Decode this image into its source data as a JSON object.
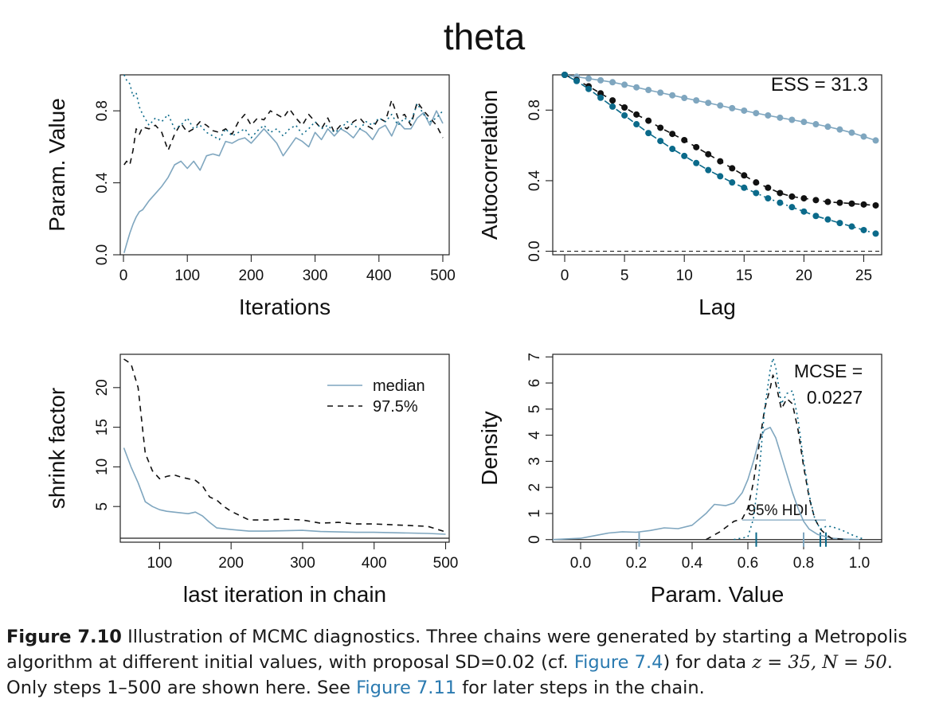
{
  "title": "theta",
  "colors": {
    "chain1": "#7fa6bf",
    "chain2": "#111111",
    "chain3": "#0b6a8a",
    "link": "#2a7ab0"
  },
  "chart_data": [
    {
      "id": "trace",
      "type": "line",
      "xlabel": "Iterations",
      "ylabel": "Param. Value",
      "xlim": [
        -5,
        510
      ],
      "ylim": [
        0,
        1
      ],
      "xticks": [
        "0",
        "100",
        "200",
        "300",
        "400",
        "500"
      ],
      "yticks": [
        "0.0",
        "0.4",
        "0.8"
      ],
      "series": [
        {
          "style": "solid",
          "color": "#7fa6bf",
          "x": [
            1,
            5,
            10,
            15,
            20,
            25,
            30,
            40,
            50,
            60,
            70,
            80,
            90,
            100,
            110,
            120,
            130,
            140,
            150,
            160,
            170,
            180,
            190,
            200,
            210,
            220,
            230,
            240,
            250,
            260,
            270,
            280,
            290,
            300,
            310,
            320,
            330,
            340,
            350,
            360,
            370,
            380,
            390,
            400,
            410,
            420,
            430,
            440,
            450,
            460,
            470,
            480,
            490,
            500
          ],
          "y": [
            0.01,
            0.06,
            0.12,
            0.17,
            0.21,
            0.24,
            0.25,
            0.3,
            0.34,
            0.38,
            0.43,
            0.5,
            0.52,
            0.48,
            0.52,
            0.47,
            0.55,
            0.56,
            0.55,
            0.63,
            0.62,
            0.64,
            0.65,
            0.62,
            0.66,
            0.7,
            0.66,
            0.62,
            0.55,
            0.6,
            0.65,
            0.63,
            0.6,
            0.68,
            0.64,
            0.7,
            0.66,
            0.7,
            0.68,
            0.65,
            0.7,
            0.68,
            0.64,
            0.7,
            0.72,
            0.66,
            0.74,
            0.7,
            0.7,
            0.76,
            0.79,
            0.72,
            0.8,
            0.73
          ]
        },
        {
          "style": "dashed",
          "color": "#111111",
          "x": [
            1,
            5,
            10,
            15,
            20,
            25,
            30,
            40,
            50,
            60,
            70,
            80,
            90,
            100,
            110,
            120,
            130,
            140,
            150,
            160,
            170,
            180,
            190,
            200,
            210,
            220,
            230,
            240,
            250,
            260,
            270,
            280,
            290,
            300,
            310,
            320,
            330,
            340,
            350,
            360,
            370,
            380,
            390,
            400,
            410,
            420,
            430,
            440,
            450,
            460,
            470,
            480,
            490,
            500
          ],
          "y": [
            0.5,
            0.52,
            0.5,
            0.58,
            0.7,
            0.67,
            0.71,
            0.7,
            0.72,
            0.68,
            0.58,
            0.67,
            0.73,
            0.68,
            0.7,
            0.74,
            0.72,
            0.69,
            0.68,
            0.7,
            0.67,
            0.74,
            0.78,
            0.72,
            0.76,
            0.75,
            0.8,
            0.78,
            0.76,
            0.81,
            0.76,
            0.72,
            0.78,
            0.74,
            0.7,
            0.76,
            0.68,
            0.72,
            0.7,
            0.74,
            0.76,
            0.72,
            0.7,
            0.76,
            0.74,
            0.86,
            0.76,
            0.78,
            0.72,
            0.85,
            0.8,
            0.76,
            0.72,
            0.65
          ]
        },
        {
          "style": "dotted",
          "color": "#0b6a8a",
          "x": [
            1,
            5,
            10,
            15,
            20,
            25,
            30,
            40,
            50,
            60,
            70,
            80,
            90,
            100,
            110,
            120,
            130,
            140,
            150,
            160,
            170,
            180,
            190,
            200,
            210,
            220,
            230,
            240,
            250,
            260,
            270,
            280,
            290,
            300,
            310,
            320,
            330,
            340,
            350,
            360,
            370,
            380,
            390,
            400,
            410,
            420,
            430,
            440,
            450,
            460,
            470,
            480,
            490,
            500
          ],
          "y": [
            1.0,
            0.97,
            0.95,
            0.88,
            0.9,
            0.82,
            0.78,
            0.72,
            0.76,
            0.74,
            0.78,
            0.7,
            0.72,
            0.76,
            0.7,
            0.72,
            0.68,
            0.66,
            0.64,
            0.7,
            0.66,
            0.68,
            0.7,
            0.65,
            0.69,
            0.72,
            0.68,
            0.7,
            0.66,
            0.7,
            0.72,
            0.67,
            0.7,
            0.74,
            0.7,
            0.72,
            0.68,
            0.7,
            0.74,
            0.72,
            0.7,
            0.74,
            0.72,
            0.76,
            0.74,
            0.78,
            0.72,
            0.76,
            0.74,
            0.84,
            0.78,
            0.74,
            0.76,
            0.8
          ]
        }
      ]
    },
    {
      "id": "acf",
      "type": "line",
      "xlabel": "Lag",
      "ylabel": "Autocorrelation",
      "annotation": "ESS = 31.3",
      "xlim": [
        -1,
        26.5
      ],
      "ylim": [
        -0.02,
        1.0
      ],
      "xticks": [
        "0",
        "5",
        "10",
        "15",
        "20",
        "25"
      ],
      "yticks": [
        "0.0",
        "0.4",
        "0.8"
      ],
      "reference_line": 0,
      "series": [
        {
          "style": "solid",
          "color": "#7fa6bf",
          "x": [
            0,
            1,
            2,
            3,
            4,
            5,
            6,
            7,
            8,
            9,
            10,
            11,
            12,
            13,
            14,
            15,
            16,
            17,
            18,
            19,
            20,
            21,
            22,
            23,
            24,
            25,
            26
          ],
          "y": [
            1.0,
            0.989,
            0.979,
            0.969,
            0.958,
            0.944,
            0.929,
            0.914,
            0.899,
            0.884,
            0.869,
            0.855,
            0.841,
            0.826,
            0.811,
            0.797,
            0.783,
            0.77,
            0.757,
            0.745,
            0.733,
            0.72,
            0.706,
            0.69,
            0.672,
            0.65,
            0.628
          ]
        },
        {
          "style": "dashed",
          "color": "#111111",
          "x": [
            0,
            1,
            2,
            3,
            4,
            5,
            6,
            7,
            8,
            9,
            10,
            11,
            12,
            13,
            14,
            15,
            16,
            17,
            18,
            19,
            20,
            21,
            22,
            23,
            24,
            25,
            26
          ],
          "y": [
            1.0,
            0.97,
            0.935,
            0.895,
            0.855,
            0.815,
            0.775,
            0.74,
            0.7,
            0.665,
            0.63,
            0.59,
            0.55,
            0.51,
            0.47,
            0.43,
            0.39,
            0.36,
            0.33,
            0.31,
            0.3,
            0.29,
            0.28,
            0.275,
            0.27,
            0.265,
            0.26
          ]
        },
        {
          "style": "dotdash",
          "color": "#0b6a8a",
          "x": [
            0,
            1,
            2,
            3,
            4,
            5,
            6,
            7,
            8,
            9,
            10,
            11,
            12,
            13,
            14,
            15,
            16,
            17,
            18,
            19,
            20,
            21,
            22,
            23,
            24,
            25,
            26
          ],
          "y": [
            1.0,
            0.965,
            0.92,
            0.87,
            0.82,
            0.77,
            0.72,
            0.67,
            0.625,
            0.58,
            0.54,
            0.5,
            0.46,
            0.425,
            0.39,
            0.36,
            0.33,
            0.3,
            0.275,
            0.25,
            0.225,
            0.2,
            0.18,
            0.16,
            0.14,
            0.12,
            0.1
          ]
        }
      ]
    },
    {
      "id": "shrink",
      "type": "line",
      "xlabel": "last iteration in chain",
      "ylabel": "shrink factor",
      "xlim": [
        45,
        505
      ],
      "ylim": [
        0.5,
        24.2
      ],
      "xticks": [
        "100",
        "200",
        "300",
        "400",
        "500"
      ],
      "yticks": [
        "5",
        "10",
        "15",
        "20"
      ],
      "reference_line": 1,
      "legend": {
        "position": "top-right",
        "entries": [
          "median",
          "97.5%"
        ]
      },
      "series": [
        {
          "name": "median",
          "style": "solid",
          "color": "#7fa6bf",
          "x": [
            50,
            60,
            70,
            80,
            90,
            100,
            110,
            120,
            130,
            140,
            150,
            160,
            170,
            180,
            190,
            200,
            225,
            250,
            275,
            300,
            325,
            350,
            375,
            400,
            425,
            450,
            475,
            500
          ],
          "y": [
            12.4,
            10.0,
            8.0,
            5.6,
            5.0,
            4.6,
            4.4,
            4.3,
            4.2,
            4.1,
            4.3,
            3.8,
            3.0,
            2.3,
            2.2,
            2.1,
            1.9,
            1.9,
            1.95,
            2.0,
            1.85,
            1.8,
            1.75,
            1.75,
            1.7,
            1.65,
            1.6,
            1.5
          ]
        },
        {
          "name": "97.5%",
          "style": "dashed",
          "color": "#111111",
          "x": [
            50,
            60,
            70,
            80,
            90,
            100,
            110,
            120,
            130,
            140,
            150,
            160,
            170,
            180,
            190,
            200,
            225,
            250,
            275,
            300,
            325,
            350,
            375,
            400,
            425,
            450,
            475,
            500
          ],
          "y": [
            23.6,
            23.0,
            20.0,
            11.7,
            9.5,
            8.5,
            8.8,
            9.0,
            8.7,
            8.5,
            8.3,
            7.6,
            6.2,
            5.8,
            5.0,
            4.4,
            3.3,
            3.3,
            3.4,
            3.3,
            2.9,
            3.0,
            2.8,
            2.8,
            2.7,
            2.6,
            2.5,
            1.8
          ]
        }
      ]
    },
    {
      "id": "density",
      "type": "line",
      "xlabel": "Param. Value",
      "ylabel": "Density",
      "annotation": [
        "MCSE =",
        "0.0227"
      ],
      "hdi_label": "95% HDI",
      "xlim": [
        -0.1,
        1.08
      ],
      "ylim": [
        -0.1,
        7.1
      ],
      "xticks": [
        "0.0",
        "0.2",
        "0.4",
        "0.6",
        "0.8",
        "1.0"
      ],
      "yticks": [
        "0",
        "1",
        "2",
        "3",
        "4",
        "5",
        "6",
        "7"
      ],
      "reference_line": 0,
      "series": [
        {
          "style": "solid",
          "color": "#7fa6bf",
          "x": [
            -0.1,
            0.0,
            0.05,
            0.1,
            0.15,
            0.2,
            0.25,
            0.3,
            0.35,
            0.4,
            0.45,
            0.48,
            0.52,
            0.55,
            0.58,
            0.6,
            0.62,
            0.64,
            0.66,
            0.68,
            0.7,
            0.72,
            0.74,
            0.76,
            0.78,
            0.8,
            0.82,
            0.85,
            0.9,
            0.95,
            1.0
          ],
          "y": [
            0.0,
            0.05,
            0.15,
            0.25,
            0.3,
            0.28,
            0.35,
            0.45,
            0.42,
            0.55,
            1.0,
            1.35,
            1.3,
            1.4,
            1.8,
            2.3,
            3.0,
            3.8,
            4.2,
            4.3,
            3.9,
            3.2,
            2.5,
            1.8,
            1.2,
            0.7,
            0.4,
            0.2,
            0.05,
            0.02,
            0.0
          ]
        },
        {
          "style": "dashed",
          "color": "#111111",
          "x": [
            0.45,
            0.5,
            0.55,
            0.58,
            0.6,
            0.62,
            0.64,
            0.66,
            0.68,
            0.69,
            0.7,
            0.72,
            0.74,
            0.76,
            0.78,
            0.8,
            0.82,
            0.84,
            0.86,
            0.88,
            0.9,
            0.95
          ],
          "y": [
            0.0,
            0.3,
            0.7,
            0.8,
            1.2,
            2.2,
            3.6,
            5.0,
            5.8,
            6.3,
            6.0,
            5.0,
            5.4,
            5.2,
            4.2,
            2.8,
            1.6,
            0.8,
            0.4,
            0.2,
            0.05,
            0.0
          ]
        },
        {
          "style": "dotted",
          "color": "#0b6a8a",
          "x": [
            0.55,
            0.6,
            0.62,
            0.64,
            0.66,
            0.68,
            0.69,
            0.7,
            0.72,
            0.74,
            0.76,
            0.78,
            0.8,
            0.82,
            0.84,
            0.86,
            0.88,
            0.9,
            0.94,
            0.98,
            1.02
          ],
          "y": [
            0.0,
            0.1,
            0.8,
            2.5,
            5.0,
            6.5,
            6.95,
            6.6,
            5.2,
            5.6,
            5.7,
            4.6,
            3.0,
            1.7,
            0.8,
            0.4,
            0.5,
            0.5,
            0.35,
            0.15,
            0.0
          ]
        }
      ],
      "hdi": {
        "low": 0.58,
        "high": 0.88,
        "level": 0.75
      },
      "hdi_ticks": [
        {
          "x": 0.21,
          "color": "#7fa6bf"
        },
        {
          "x": 0.8,
          "color": "#7fa6bf"
        },
        {
          "x": 0.63,
          "color": "#0b6a8a"
        },
        {
          "x": 0.86,
          "color": "#0b6a8a"
        },
        {
          "x": 0.88,
          "color": "#0b6a8a"
        }
      ]
    }
  ],
  "caption": {
    "label": "Figure 7.10",
    "t1": "  Illustration of MCMC diagnostics. Three chains were generated by starting a Metropolis algorithm at different initial values, with proposal SD=0.02 (cf. ",
    "link1": "Figure 7.4",
    "t2": ") for data ",
    "math1": "z = 35, N = 50",
    "t3": ". Only steps 1–500 are shown here. See ",
    "link2": "Figure 7.11",
    "t4": " for later steps in the chain."
  }
}
